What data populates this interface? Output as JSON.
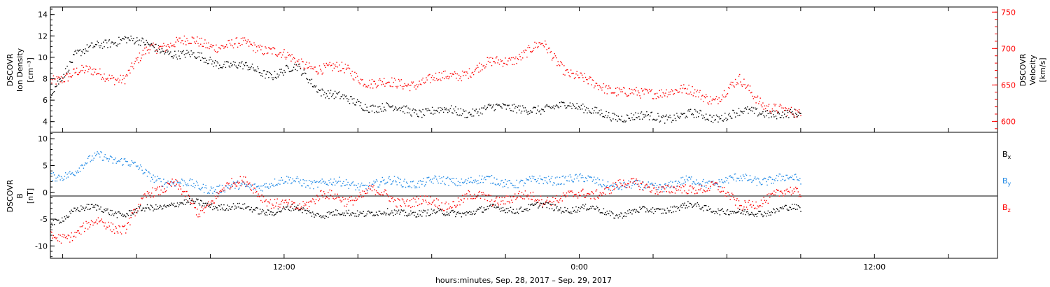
{
  "colors": {
    "black": "#000000",
    "red": "#ff0000",
    "blue": "#1e88e5",
    "axis": "#000000"
  },
  "chart_data": [
    {
      "type": "scatter",
      "panel": "top",
      "ylabel": [
        "DSCOVR",
        "Ion Density",
        "[cm⁻³]"
      ],
      "ylim": [
        3,
        14.7
      ],
      "yticks": [
        4,
        6,
        8,
        10,
        12,
        14
      ],
      "y2label": [
        "DSCOVR",
        "Velocity",
        "[km/s]"
      ],
      "y2lim": [
        585,
        757
      ],
      "y2ticks": [
        600,
        650,
        700,
        750
      ],
      "xlim": [
        2.5,
        41.0
      ],
      "data_end_hour": 33.0,
      "series": [
        {
          "axis": "left",
          "color": "black",
          "x": [
            2.5,
            3.5,
            4.5,
            5.5,
            6.5,
            7.5,
            8.5,
            9.5,
            10.5,
            11.5,
            12.5,
            13.5,
            14.5,
            15.5,
            16.5,
            17.5,
            18.5,
            19.5,
            20.5,
            21.5,
            22.5,
            23.5,
            24.5,
            25.5,
            26.5,
            27.5,
            28.5,
            29.5,
            30.5,
            31.5,
            32.5
          ],
          "y": [
            6.5,
            10.5,
            11.0,
            12.0,
            11.0,
            10.5,
            10.0,
            9.5,
            9.0,
            8.5,
            9.0,
            7.0,
            6.0,
            5.5,
            5.2,
            5.0,
            5.0,
            5.0,
            5.2,
            5.5,
            4.8,
            6.0,
            4.8,
            4.6,
            4.4,
            4.5,
            4.6,
            4.5,
            4.8,
            5.0,
            4.6
          ]
        },
        {
          "axis": "right",
          "color": "red",
          "x": [
            2.5,
            3.5,
            4.5,
            5.5,
            6.5,
            7.5,
            8.5,
            9.5,
            10.5,
            11.5,
            12.5,
            13.5,
            14.5,
            15.5,
            16.5,
            17.5,
            18.5,
            19.5,
            20.5,
            21.5,
            22.5,
            23.5,
            24.5,
            25.5,
            26.5,
            27.5,
            28.5,
            29.5,
            30.5,
            31.5,
            32.5
          ],
          "y": [
            655,
            670,
            665,
            660,
            700,
            710,
            708,
            705,
            705,
            700,
            680,
            675,
            670,
            655,
            650,
            655,
            660,
            670,
            680,
            690,
            705,
            670,
            650,
            645,
            635,
            645,
            640,
            632,
            655,
            625,
            610
          ]
        }
      ]
    },
    {
      "type": "scatter",
      "panel": "bottom",
      "ylabel": [
        "DSCOVR",
        "B",
        "[nT]"
      ],
      "ylim": [
        -12.3,
        11.2
      ],
      "yticks": [
        -10,
        -5,
        0,
        5,
        10
      ],
      "xlim": [
        2.5,
        41.0
      ],
      "data_end_hour": 33.0,
      "xticklabels": [
        {
          "x": 12,
          "label": "12:00"
        },
        {
          "x": 24,
          "label": "0:00"
        },
        {
          "x": 36,
          "label": "12:00"
        }
      ],
      "xlabel": "hours:minutes, Sep. 28, 2017 – Sep. 29, 2017",
      "series": [
        {
          "name": "Bx",
          "color": "black",
          "x": [
            2.5,
            3.5,
            4.5,
            5.5,
            6.5,
            7.5,
            8.5,
            9.5,
            10.5,
            11.5,
            12.5,
            13.5,
            14.5,
            15.5,
            16.5,
            17.5,
            18.5,
            19.5,
            20.5,
            21.5,
            22.5,
            23.5,
            24.5,
            25.5,
            26.5,
            27.5,
            28.5,
            29.5,
            30.5,
            31.5,
            32.5
          ],
          "y": [
            -6,
            -3,
            -3,
            -4,
            -3,
            -2,
            -2,
            -2.5,
            -3,
            -3.5,
            -3,
            -4,
            -4,
            -3.5,
            -4,
            -3.5,
            -4,
            -3.5,
            -3,
            -3,
            -2.5,
            -3,
            -3,
            -4,
            -3.5,
            -3,
            -2.5,
            -3,
            -4,
            -3.5,
            -3
          ]
        },
        {
          "name": "By",
          "color": "blue",
          "x": [
            2.5,
            3.5,
            4.5,
            5.5,
            6.5,
            7.5,
            8.5,
            9.5,
            10.5,
            11.5,
            12.5,
            13.5,
            14.5,
            15.5,
            16.5,
            17.5,
            18.5,
            19.5,
            20.5,
            21.5,
            22.5,
            23.5,
            24.5,
            25.5,
            26.5,
            27.5,
            28.5,
            29.5,
            30.5,
            31.5,
            32.5
          ],
          "y": [
            3,
            4,
            7,
            6,
            3,
            2,
            1,
            1,
            1,
            2,
            2,
            2,
            1.5,
            1.5,
            2,
            2,
            2,
            2.5,
            2,
            2,
            2,
            3,
            2,
            1.5,
            1,
            1.5,
            2,
            2,
            2.5,
            2.5,
            2.5
          ]
        },
        {
          "name": "Bz",
          "color": "red",
          "x": [
            2.5,
            3.5,
            4.5,
            5.5,
            6.5,
            7.5,
            8.5,
            9.5,
            10.5,
            11.5,
            12.5,
            13.5,
            14.5,
            15.5,
            16.5,
            17.5,
            18.5,
            19.5,
            20.5,
            21.5,
            22.5,
            23.5,
            24.5,
            25.5,
            26.5,
            27.5,
            28.5,
            29.5,
            30.5,
            31.5,
            32.5
          ],
          "y": [
            -8,
            -8,
            -5,
            -7,
            0,
            2,
            -4,
            1,
            2,
            -2,
            -3,
            0,
            -2,
            1,
            -2,
            -1,
            -3,
            0,
            -2,
            0,
            -2,
            0,
            -1,
            2,
            1,
            1,
            0,
            2,
            -3,
            -1,
            0
          ]
        }
      ],
      "legend": [
        {
          "base": "B",
          "sub": "x",
          "color": "black"
        },
        {
          "base": "B",
          "sub": "y",
          "color": "blue"
        },
        {
          "base": "B",
          "sub": "z",
          "color": "red"
        }
      ]
    }
  ]
}
